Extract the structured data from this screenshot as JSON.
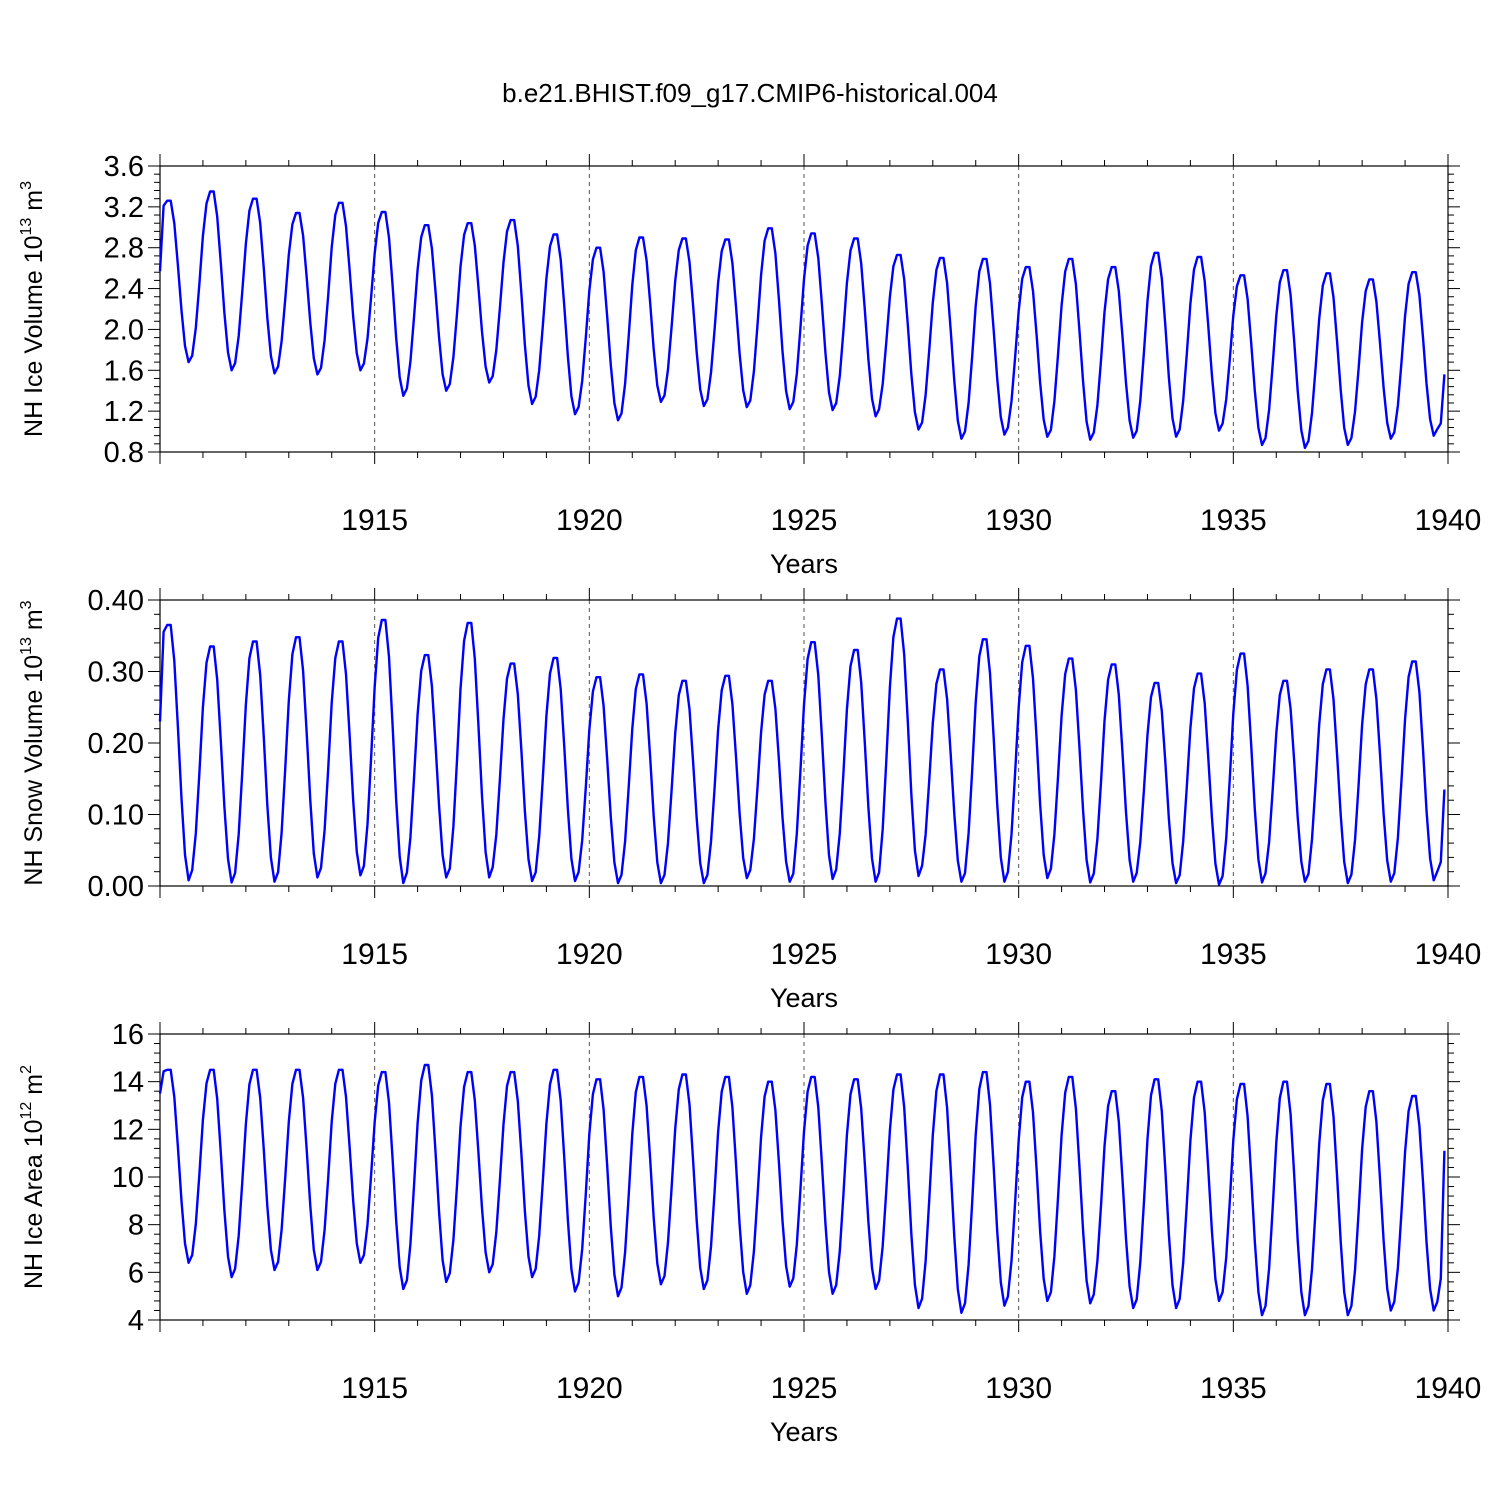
{
  "title": "b.e21.BHIST.f09_g17.CMIP6-historical.004",
  "chart_data": [
    {
      "type": "line",
      "name": "ice-volume",
      "ylabel": "NH Ice Volume 10",
      "ylabel_exp": "13",
      "ylabel_unit": " m",
      "ylabel_unit_exp": "3",
      "xlabel": "Years",
      "ylim": [
        0.8,
        3.6
      ],
      "yticks": [
        "0.8",
        "1.2",
        "1.6",
        "2.0",
        "2.4",
        "2.8",
        "3.2",
        "3.6"
      ],
      "xlim": [
        1910,
        1940
      ],
      "xticks": [
        "1915",
        "1920",
        "1925",
        "1930",
        "1935",
        "1940"
      ],
      "series": [
        {
          "name": "NH Ice Volume",
          "color": "#0000ff",
          "years": [
            1910,
            1911,
            1912,
            1913,
            1914,
            1915,
            1916,
            1917,
            1918,
            1919,
            1920,
            1921,
            1922,
            1923,
            1924,
            1925,
            1926,
            1927,
            1928,
            1929,
            1930,
            1931,
            1932,
            1933,
            1934,
            1935,
            1936,
            1937,
            1938,
            1939
          ],
          "max": [
            3.26,
            3.35,
            3.28,
            3.14,
            3.24,
            3.15,
            3.02,
            3.04,
            3.07,
            2.93,
            2.8,
            2.9,
            2.89,
            2.88,
            2.99,
            2.94,
            2.89,
            2.73,
            2.7,
            2.69,
            2.61,
            2.69,
            2.61,
            2.75,
            2.71,
            2.53,
            2.58,
            2.55,
            2.49,
            2.56
          ],
          "min": [
            1.68,
            1.6,
            1.57,
            1.56,
            1.6,
            1.35,
            1.4,
            1.48,
            1.27,
            1.17,
            1.11,
            1.29,
            1.25,
            1.24,
            1.22,
            1.21,
            1.15,
            1.02,
            0.93,
            0.97,
            0.95,
            0.92,
            0.94,
            0.95,
            1.01,
            0.87,
            0.84,
            0.87,
            0.93,
            0.96
          ],
          "start": 2.57,
          "end": 1.56
        }
      ]
    },
    {
      "type": "line",
      "name": "snow-volume",
      "ylabel": "NH Snow Volume 10",
      "ylabel_exp": "13",
      "ylabel_unit": " m",
      "ylabel_unit_exp": "3",
      "xlabel": "Years",
      "ylim": [
        0.0,
        0.4
      ],
      "yticks": [
        "0.00",
        "0.10",
        "0.20",
        "0.30",
        "0.40"
      ],
      "xlim": [
        1910,
        1940
      ],
      "xticks": [
        "1915",
        "1920",
        "1925",
        "1930",
        "1935",
        "1940"
      ],
      "series": [
        {
          "name": "NH Snow Volume",
          "color": "#0000ff",
          "years": [
            1910,
            1911,
            1912,
            1913,
            1914,
            1915,
            1916,
            1917,
            1918,
            1919,
            1920,
            1921,
            1922,
            1923,
            1924,
            1925,
            1926,
            1927,
            1928,
            1929,
            1930,
            1931,
            1932,
            1933,
            1934,
            1935,
            1936,
            1937,
            1938,
            1939
          ],
          "max": [
            0.365,
            0.335,
            0.342,
            0.348,
            0.342,
            0.372,
            0.323,
            0.368,
            0.311,
            0.319,
            0.292,
            0.296,
            0.287,
            0.294,
            0.287,
            0.341,
            0.33,
            0.374,
            0.303,
            0.345,
            0.336,
            0.318,
            0.31,
            0.284,
            0.297,
            0.325,
            0.287,
            0.303,
            0.303,
            0.314
          ],
          "min": [
            0.008,
            0.005,
            0.006,
            0.012,
            0.015,
            0.004,
            0.012,
            0.012,
            0.007,
            0.007,
            0.004,
            0.004,
            0.004,
            0.011,
            0.006,
            0.01,
            0.006,
            0.014,
            0.006,
            0.006,
            0.011,
            0.005,
            0.006,
            0.004,
            0.002,
            0.005,
            0.006,
            0.004,
            0.006,
            0.008
          ],
          "start": 0.23,
          "end": 0.135
        }
      ]
    },
    {
      "type": "line",
      "name": "ice-area",
      "ylabel": "NH Ice Area 10",
      "ylabel_exp": "12",
      "ylabel_unit": " m",
      "ylabel_unit_exp": "2",
      "xlabel": "Years",
      "ylim": [
        4,
        16
      ],
      "yticks": [
        "4",
        "6",
        "8",
        "10",
        "12",
        "14",
        "16"
      ],
      "xlim": [
        1910,
        1940
      ],
      "xticks": [
        "1915",
        "1920",
        "1925",
        "1930",
        "1935",
        "1940"
      ],
      "series": [
        {
          "name": "NH Ice Area",
          "color": "#0000ff",
          "years": [
            1910,
            1911,
            1912,
            1913,
            1914,
            1915,
            1916,
            1917,
            1918,
            1919,
            1920,
            1921,
            1922,
            1923,
            1924,
            1925,
            1926,
            1927,
            1928,
            1929,
            1930,
            1931,
            1932,
            1933,
            1934,
            1935,
            1936,
            1937,
            1938,
            1939
          ],
          "max": [
            14.5,
            14.5,
            14.5,
            14.5,
            14.5,
            14.4,
            14.7,
            14.4,
            14.4,
            14.5,
            14.1,
            14.2,
            14.3,
            14.2,
            14.0,
            14.2,
            14.1,
            14.3,
            14.3,
            14.4,
            14.0,
            14.2,
            13.6,
            14.1,
            14.0,
            13.9,
            14.0,
            13.9,
            13.6,
            13.4
          ],
          "min": [
            6.4,
            5.8,
            6.1,
            6.1,
            6.4,
            5.3,
            5.6,
            6.0,
            5.8,
            5.2,
            5.0,
            5.5,
            5.3,
            5.1,
            5.4,
            5.1,
            5.3,
            4.5,
            4.3,
            4.6,
            4.8,
            4.7,
            4.5,
            4.5,
            4.8,
            4.2,
            4.2,
            4.2,
            4.4,
            4.4
          ],
          "start": 13.5,
          "end": 11.1
        }
      ]
    }
  ]
}
